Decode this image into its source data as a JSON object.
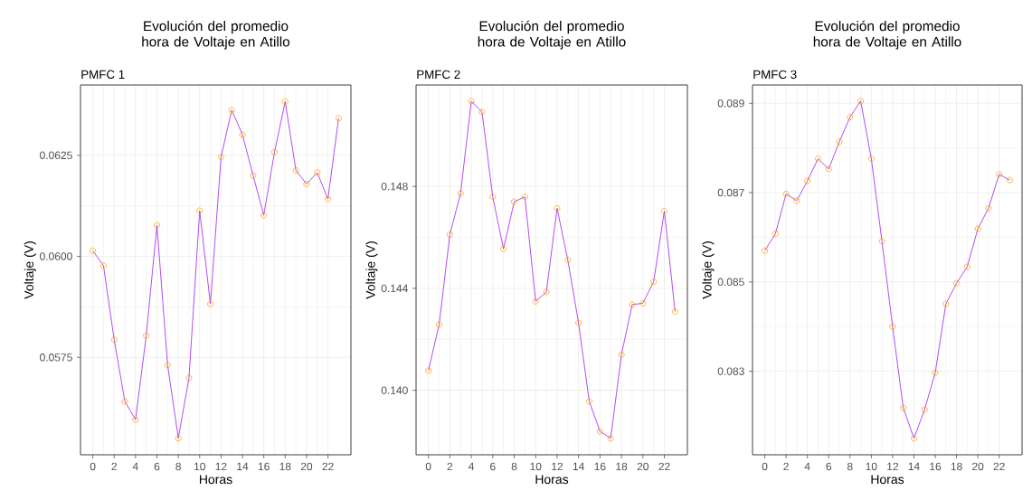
{
  "chart_data": [
    {
      "type": "line",
      "title": "Evolución del promedio hora de Voltaje en Atillo",
      "subtitle": "PMFC 1",
      "xlabel": "Horas",
      "ylabel": "Voltaje (V)",
      "grid": true,
      "marker": "circle",
      "color": "#a020f0",
      "colors": [
        "#ffa500",
        "#ffa500",
        "#ffa500",
        "#ffa500",
        "#ffa500",
        "#ffa500",
        "#ffa500",
        "#ffa500",
        "#ffa500",
        "#ffa500",
        "#ffa500",
        "#ffa500",
        "#ffa500",
        "#ffa500",
        "#ffa500",
        "#ffa500",
        "#ffa500",
        "#ffa500",
        "#ffa500",
        "#ffa500",
        "#ffa500",
        "#ffa500",
        "#ffa500",
        "#ffa500"
      ],
      "x": [
        0,
        1,
        2,
        3,
        4,
        5,
        6,
        7,
        8,
        9,
        10,
        11,
        12,
        13,
        14,
        15,
        16,
        17,
        18,
        19,
        20,
        21,
        22,
        23
      ],
      "values": [
        0.06014,
        0.05977,
        0.05794,
        0.05641,
        0.05596,
        0.05804,
        0.06077,
        0.05731,
        0.0555,
        0.05699,
        0.06113,
        0.05882,
        0.06246,
        0.06362,
        0.06301,
        0.062,
        0.06102,
        0.06258,
        0.06383,
        0.06213,
        0.06179,
        0.06207,
        0.06142,
        0.06342
      ],
      "xlim": [
        -1.15,
        24.15
      ],
      "xticks": [
        0,
        2,
        4,
        6,
        8,
        10,
        12,
        14,
        16,
        18,
        20,
        22
      ],
      "ylim": [
        0.05509,
        0.06424
      ],
      "yticks": [
        {
          "value": 0.0575,
          "label": "0.0575"
        },
        {
          "value": 0.06,
          "label": "0.0600"
        },
        {
          "value": 0.0625,
          "label": "0.0625"
        }
      ]
    },
    {
      "type": "line",
      "title": "Evolución del promedio hora de Voltaje en Atillo",
      "subtitle": "PMFC 2",
      "xlabel": "Horas",
      "ylabel": "Voltaje (V)",
      "grid": true,
      "marker": "circle",
      "color": "#a020f0",
      "colors": [
        "#ffa500",
        "#ffa500",
        "#ffa500",
        "#ffa500",
        "#ffa500",
        "#ffa500",
        "#ffa500",
        "#ffa500",
        "#ffa500",
        "#ffa500",
        "#ffa500",
        "#ffa500",
        "#ffa500",
        "#ffa500",
        "#ffa500",
        "#ffa500",
        "#ffa500",
        "#ffa500",
        "#ffa500",
        "#ffa500",
        "#ffa500",
        "#ffa500",
        "#ffa500",
        "#ffa500"
      ],
      "x": [
        0,
        1,
        2,
        3,
        4,
        5,
        6,
        7,
        8,
        9,
        10,
        11,
        12,
        13,
        14,
        15,
        16,
        17,
        18,
        19,
        20,
        21,
        22,
        23
      ],
      "values": [
        0.14077,
        0.14258,
        0.14611,
        0.14773,
        0.15134,
        0.15092,
        0.14759,
        0.14555,
        0.1474,
        0.14759,
        0.14349,
        0.14386,
        0.14714,
        0.14511,
        0.14265,
        0.13956,
        0.13839,
        0.13812,
        0.1414,
        0.14336,
        0.14342,
        0.14426,
        0.14703,
        0.14309
      ],
      "xlim": [
        -1.15,
        24.15
      ],
      "xticks": [
        0,
        2,
        4,
        6,
        8,
        10,
        12,
        14,
        16,
        18,
        20,
        22
      ],
      "ylim": [
        0.13747,
        0.15198
      ],
      "yticks": [
        {
          "value": 0.14,
          "label": "0.140"
        },
        {
          "value": 0.144,
          "label": "0.144"
        },
        {
          "value": 0.148,
          "label": "0.148"
        }
      ]
    },
    {
      "type": "line",
      "title": "Evolución del promedio hora de Voltaje en Atillo",
      "subtitle": "PMFC 3",
      "xlabel": "Horas",
      "ylabel": "Voltaje (V)",
      "grid": true,
      "marker": "circle",
      "color": "#a020f0",
      "colors": [
        "#ffa500",
        "#ffa500",
        "#ffa500",
        "#ffa500",
        "#ffa500",
        "#ffa500",
        "#ffa500",
        "#ffa500",
        "#ffa500",
        "#ffa500",
        "#ffa500",
        "#ffa500",
        "#ffa500",
        "#ffa500",
        "#ffa500",
        "#ffa500",
        "#ffa500",
        "#ffa500",
        "#ffa500",
        "#ffa500",
        "#ffa500",
        "#ffa500",
        "#ffa500",
        "#ffa500"
      ],
      "x": [
        0,
        1,
        2,
        3,
        4,
        5,
        6,
        7,
        8,
        9,
        10,
        11,
        12,
        13,
        14,
        15,
        16,
        17,
        18,
        19,
        20,
        21,
        22,
        23
      ],
      "values": [
        0.0857,
        0.08608,
        0.08697,
        0.08682,
        0.08726,
        0.08776,
        0.08753,
        0.08814,
        0.08869,
        0.08905,
        0.08776,
        0.08591,
        0.084,
        0.08218,
        0.0815,
        0.08214,
        0.08297,
        0.08451,
        0.08497,
        0.08534,
        0.08619,
        0.08665,
        0.08741,
        0.08728
      ],
      "xlim": [
        -1.15,
        24.15
      ],
      "xticks": [
        0,
        2,
        4,
        6,
        8,
        10,
        12,
        14,
        16,
        18,
        20,
        22
      ],
      "ylim": [
        0.08113,
        0.08941
      ],
      "yticks": [
        {
          "value": 0.083,
          "label": "0.083"
        },
        {
          "value": 0.085,
          "label": "0.085"
        },
        {
          "value": 0.087,
          "label": "0.087"
        },
        {
          "value": 0.089,
          "label": "0.089"
        }
      ]
    }
  ]
}
